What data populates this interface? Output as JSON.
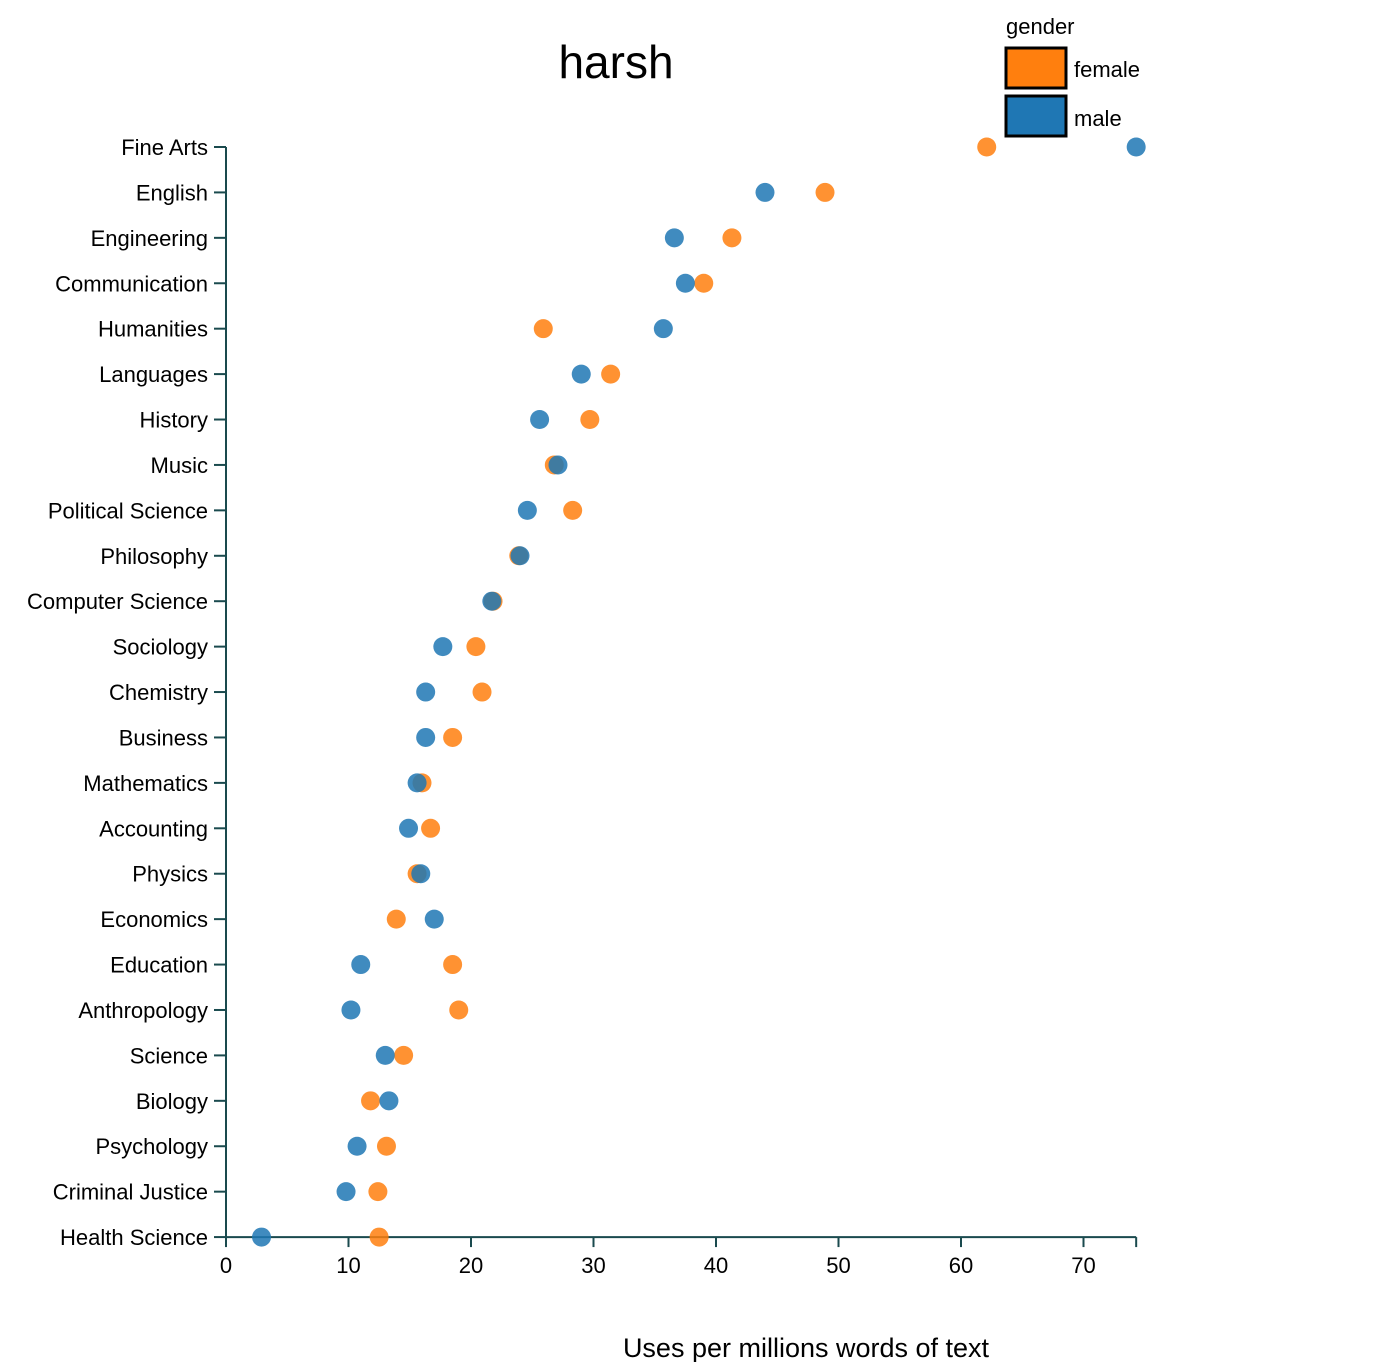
{
  "chart_data": {
    "type": "scatter",
    "title": "harsh",
    "xlabel": "Uses per millions words of text",
    "ylabel": "",
    "xlim": [
      0,
      74.3
    ],
    "x_ticks": [
      0,
      10,
      20,
      30,
      40,
      50,
      60,
      70
    ],
    "grid": false,
    "legend": {
      "title": "gender",
      "placement": "top-right",
      "entries": [
        {
          "name": "female",
          "color": "#ff7f0e"
        },
        {
          "name": "male",
          "color": "#1f77b4"
        }
      ]
    },
    "categories": [
      "Fine Arts",
      "English",
      "Engineering",
      "Communication",
      "Humanities",
      "Languages",
      "History",
      "Music",
      "Political Science",
      "Philosophy",
      "Computer Science",
      "Sociology",
      "Chemistry",
      "Business",
      "Mathematics",
      "Accounting",
      "Physics",
      "Economics",
      "Education",
      "Anthropology",
      "Science",
      "Biology",
      "Psychology",
      "Criminal Justice",
      "Health Science"
    ],
    "series": [
      {
        "name": "female",
        "color": "#ff7f0e",
        "values": [
          62.1,
          48.9,
          41.3,
          39.0,
          25.9,
          31.4,
          29.7,
          26.8,
          28.3,
          23.9,
          21.8,
          20.4,
          20.9,
          18.5,
          16.0,
          16.7,
          15.6,
          13.9,
          18.5,
          19.0,
          14.5,
          11.8,
          13.1,
          12.4,
          12.5
        ]
      },
      {
        "name": "male",
        "color": "#1f77b4",
        "values": [
          74.3,
          44.0,
          36.6,
          37.5,
          35.7,
          29.0,
          25.6,
          27.1,
          24.6,
          24.0,
          21.7,
          17.7,
          16.3,
          16.3,
          15.6,
          14.9,
          15.9,
          17.0,
          11.0,
          10.2,
          13.0,
          13.3,
          10.7,
          9.8,
          2.9
        ]
      }
    ]
  }
}
